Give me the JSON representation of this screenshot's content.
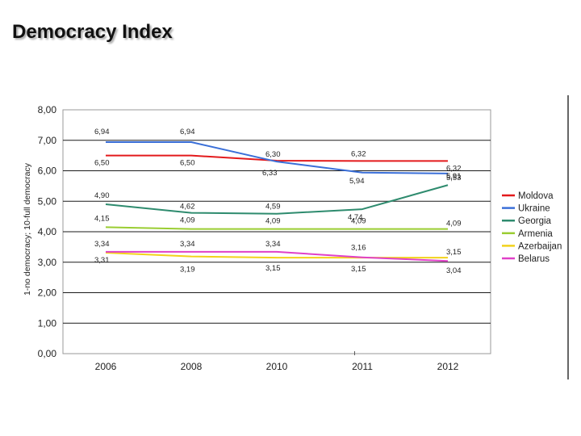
{
  "slide": {
    "title": "Democracy Index"
  },
  "chart_data": {
    "type": "line",
    "title": "",
    "xlabel": "",
    "ylabel": "1-no democracy; 10-full democracy",
    "categories": [
      "2006",
      "2008",
      "2010",
      "2011",
      "2012"
    ],
    "y_ticks": [
      "0,00",
      "1,00",
      "2,00",
      "3,00",
      "4,00",
      "5,00",
      "6,00",
      "7,00",
      "8,00"
    ],
    "ylim": [
      0,
      8
    ],
    "grid": "major-horizontal",
    "legend_position": "right",
    "series": [
      {
        "name": "Moldova",
        "color": "#e31a1c",
        "values": [
          6.5,
          6.5,
          6.33,
          6.32,
          6.32
        ],
        "labels": [
          "6,50",
          "6,50",
          "6,33",
          "6,32",
          "6,32"
        ]
      },
      {
        "name": "Ukraine",
        "color": "#3a6fd8",
        "values": [
          6.94,
          6.94,
          6.3,
          5.94,
          5.91
        ],
        "labels": [
          "6,94",
          "6,94",
          "6,30",
          "5,94",
          "5,91"
        ]
      },
      {
        "name": "Georgia",
        "color": "#2e8b6e",
        "values": [
          4.9,
          4.62,
          4.59,
          4.74,
          5.53
        ],
        "labels": [
          "4,90",
          "4,62",
          "4,59",
          "4,74",
          "5,53"
        ]
      },
      {
        "name": "Armenia",
        "color": "#9acd32",
        "values": [
          4.15,
          4.09,
          4.09,
          4.09,
          4.09
        ],
        "labels": [
          "4,15",
          "4,09",
          "4,09",
          "4,09",
          "4,09"
        ]
      },
      {
        "name": "Azerbaijan",
        "color": "#f2d21b",
        "values": [
          3.31,
          3.19,
          3.15,
          3.15,
          3.15
        ],
        "labels": [
          "3,31",
          "3,19",
          "3,15",
          "3,15",
          "3,15"
        ]
      },
      {
        "name": "Belarus",
        "color": "#e040c8",
        "values": [
          3.34,
          3.34,
          3.34,
          3.16,
          3.04
        ],
        "labels": [
          "3,34",
          "3,34",
          "3,34",
          "3,16",
          "3,04"
        ]
      }
    ]
  }
}
